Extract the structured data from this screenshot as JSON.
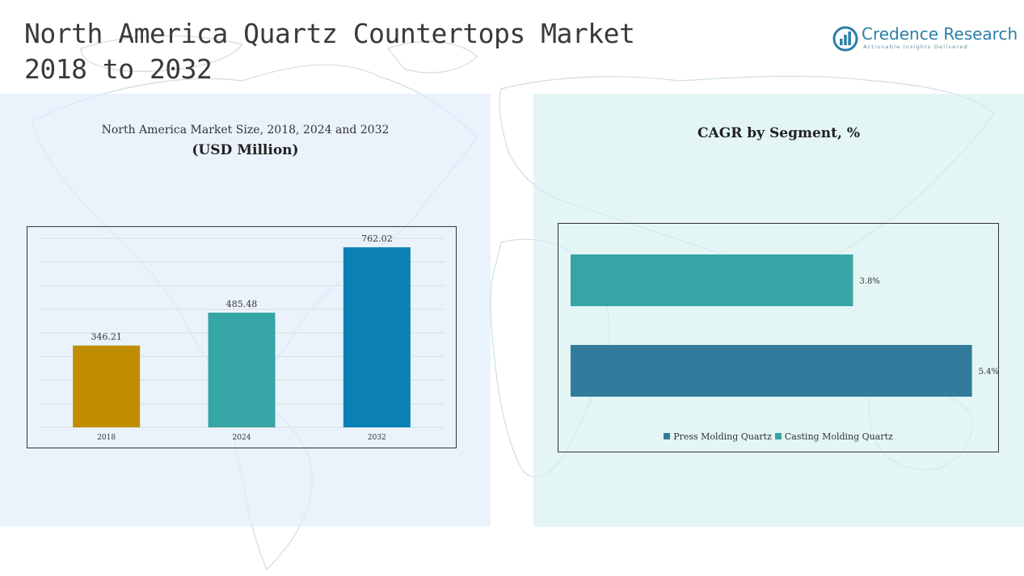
{
  "header": {
    "title_line1": "North America Quartz Countertops Market",
    "title_line2": "2018 to 2032"
  },
  "logo": {
    "name": "Credence Research",
    "tagline": "Actionable Insights Delivered",
    "color": "#2a7fa8"
  },
  "chart_data": [
    {
      "type": "bar",
      "title": "North America Market Size, 2018, 2024 and 2032",
      "subtitle": "(USD Million)",
      "categories": [
        "2018",
        "2024",
        "2032"
      ],
      "values": [
        346.21,
        485.48,
        762.02
      ],
      "value_labels": [
        "346.21",
        "485.48",
        "762.02"
      ],
      "colors": [
        "#c08d00",
        "#35a5a5",
        "#0a80b4"
      ],
      "ylim": [
        0,
        800
      ],
      "grid": true,
      "xlabel": "",
      "ylabel": ""
    },
    {
      "type": "bar",
      "orientation": "horizontal",
      "title": "CAGR by Segment, %",
      "categories": [
        "Casting Molding Quartz",
        "Press Molding Quartz"
      ],
      "values": [
        3.8,
        5.4
      ],
      "value_labels": [
        "3.8%",
        "5.4%"
      ],
      "colors": [
        "#35a5a5",
        "#337b9c"
      ],
      "xlim": [
        0,
        5.6
      ],
      "grid": false,
      "legend": {
        "position": "bottom",
        "entries": [
          {
            "label": "Press Molding Quartz",
            "color": "#337b9c"
          },
          {
            "label": "Casting Molding Quartz",
            "color": "#35a5a5"
          }
        ]
      }
    }
  ]
}
